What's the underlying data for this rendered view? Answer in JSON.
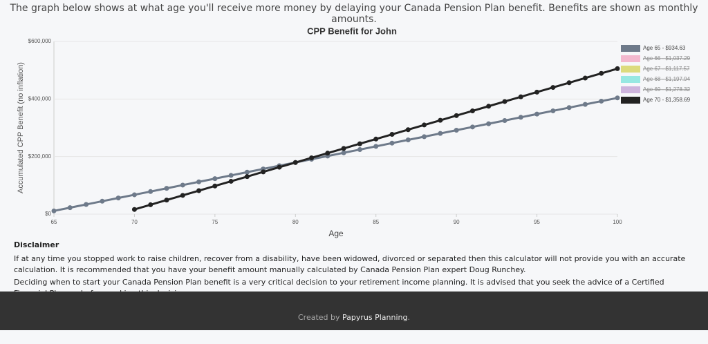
{
  "header": {
    "text": "The graph below shows at what age you'll receive more money by delaying your Canada Pension Plan benefit. Benefits are shown as monthly amounts."
  },
  "chart_data": {
    "type": "line",
    "title": "CPP Benefit for John",
    "x_label": "Age",
    "y_label": "Accumulated CPP Benefit (no inflation)",
    "x": [
      65,
      66,
      67,
      68,
      69,
      70,
      71,
      72,
      73,
      74,
      75,
      76,
      77,
      78,
      79,
      80,
      81,
      82,
      83,
      84,
      85,
      86,
      87,
      88,
      89,
      90,
      91,
      92,
      93,
      94,
      95,
      96,
      97,
      98,
      99,
      100
    ],
    "xlim": [
      65,
      100
    ],
    "xticks": [
      65,
      70,
      75,
      80,
      85,
      90,
      95,
      100
    ],
    "ylim": [
      0,
      600000
    ],
    "yticks": [
      {
        "value": 0,
        "label": "$0"
      },
      {
        "value": 200000,
        "label": "$200,000"
      },
      {
        "value": 400000,
        "label": "$400,000"
      },
      {
        "value": 600000,
        "label": "$600,000"
      }
    ],
    "grid": true,
    "legend": "right",
    "series": [
      {
        "name": "Age 65 - $934.63",
        "color": "#6e7a8a",
        "values": [
          11216,
          22431,
          33647,
          44862,
          56078,
          67293,
          78509,
          89724,
          100940,
          112156,
          123371,
          134587,
          145802,
          157018,
          168233,
          179449,
          190665,
          201880,
          213096,
          224311,
          235527,
          246742,
          257958,
          269173,
          280389,
          291605,
          302820,
          314036,
          325251,
          336467,
          347682,
          358898,
          370113,
          381329,
          392545,
          403760
        ]
      },
      {
        "name": "Age 66 - $1,037.29",
        "color": "#f2a7c3",
        "hidden": true
      },
      {
        "name": "Age 67 - $1,117.57",
        "color": "#d6d35e",
        "hidden": true
      },
      {
        "name": "Age 68 - $1,197.94",
        "color": "#7fe3dc",
        "hidden": true
      },
      {
        "name": "Age 69 - $1,278.32",
        "color": "#c3a3d6",
        "hidden": true
      },
      {
        "name": "Age 70 - $1,358.69",
        "color": "#222222",
        "values": [
          null,
          null,
          null,
          null,
          null,
          16304,
          32609,
          48913,
          65217,
          81521,
          97826,
          114130,
          130434,
          146739,
          163043,
          179347,
          195651,
          211956,
          228260,
          244564,
          260868,
          277173,
          293477,
          309781,
          326086,
          342390,
          358694,
          374998,
          391303,
          407607,
          423911,
          440216,
          456520,
          472824,
          489128,
          505433
        ]
      }
    ]
  },
  "disclaimer": {
    "title": "Disclaimer",
    "paragraphs": [
      "If at any time you stopped work to raise children, recover from a disability, have been widowed, divorced or separated then this calculator will not provide you with an accurate calculation. It is recommended that you have your benefit amount manually calculated by Canada Pension Plan expert Doug Runchey.",
      "Deciding when to start your Canada Pension Plan benefit is a very critical decision to your retirement income planning. It is advised that you seek the advice of a Certified Financial Planner before making this decision."
    ]
  },
  "footer": {
    "prefix": "Created by",
    "link": "Papyrus Planning",
    "suffix": "."
  }
}
